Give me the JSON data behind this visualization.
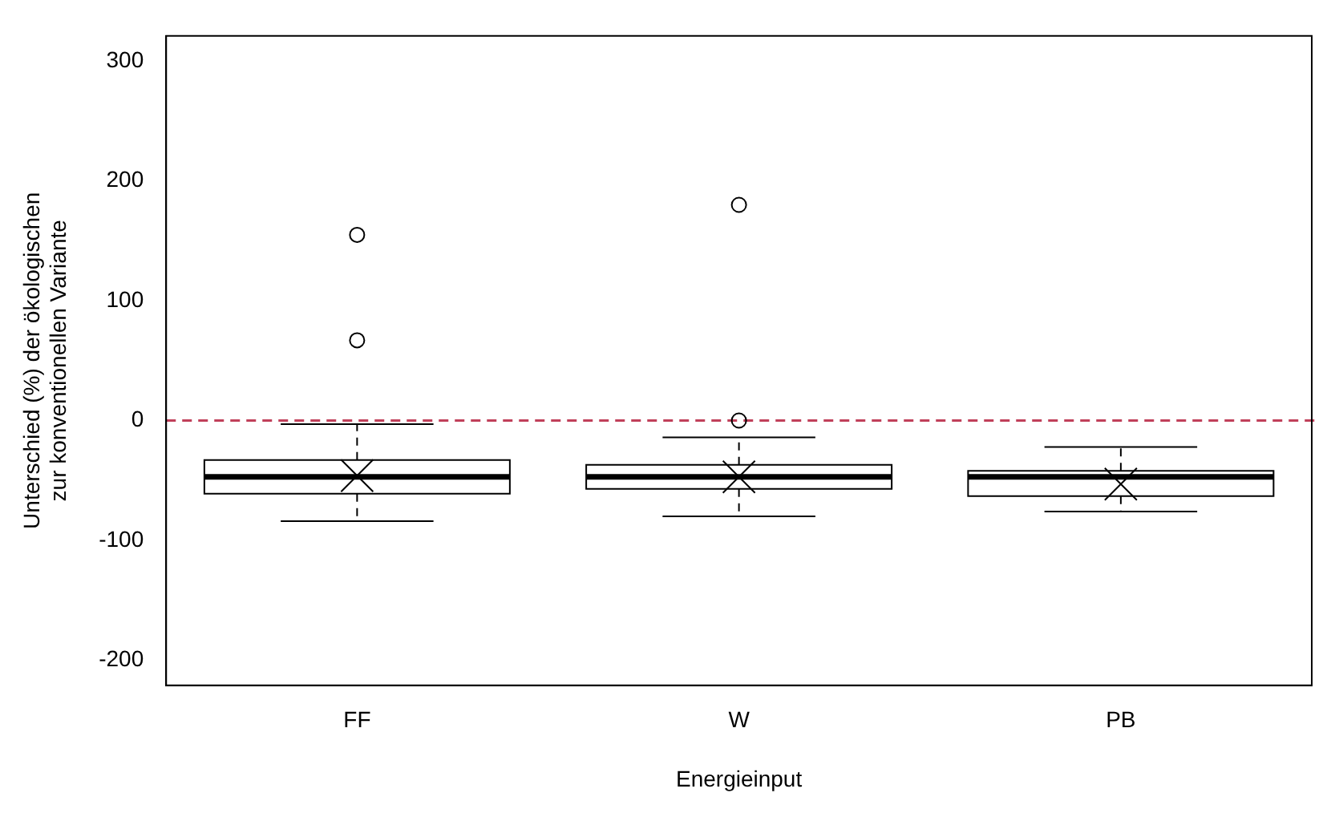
{
  "chart_data": {
    "type": "box",
    "xlabel": "Energieinput",
    "ylabel": "Unterschied (%) der ökologischen\nzur konventionellen Variante",
    "categories": [
      "FF",
      "W",
      "PB"
    ],
    "boxes": [
      {
        "low": -84,
        "q1": -61,
        "median": -47,
        "q3": -33,
        "high": -3,
        "mean": -46,
        "outliers": [
          155,
          67
        ]
      },
      {
        "low": -80,
        "q1": -57,
        "median": -47,
        "q3": -37,
        "high": -14,
        "mean": -47,
        "outliers": [
          180,
          0
        ]
      },
      {
        "low": -76,
        "q1": -63,
        "median": -47,
        "q3": -42,
        "high": -22,
        "mean": -53
      }
    ],
    "ylim": [
      -221,
      321
    ],
    "yticks": [
      -200,
      -100,
      0,
      100,
      200,
      300
    ],
    "grid": false,
    "legend": false,
    "ref_lines": [
      {
        "axis": "y",
        "value": 0,
        "color": "#c0405a",
        "line_style": "dashed"
      }
    ]
  }
}
